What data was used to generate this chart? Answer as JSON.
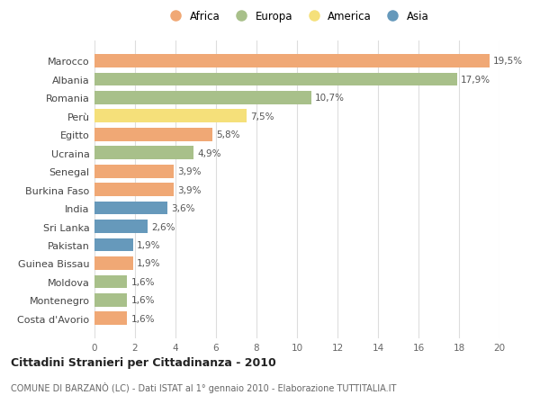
{
  "countries": [
    "Marocco",
    "Albania",
    "Romania",
    "Perù",
    "Egitto",
    "Ucraina",
    "Senegal",
    "Burkina Faso",
    "India",
    "Sri Lanka",
    "Pakistan",
    "Guinea Bissau",
    "Moldova",
    "Montenegro",
    "Costa d'Avorio"
  ],
  "values": [
    19.5,
    17.9,
    10.7,
    7.5,
    5.8,
    4.9,
    3.9,
    3.9,
    3.6,
    2.6,
    1.9,
    1.9,
    1.6,
    1.6,
    1.6
  ],
  "labels": [
    "19,5%",
    "17,9%",
    "10,7%",
    "7,5%",
    "5,8%",
    "4,9%",
    "3,9%",
    "3,9%",
    "3,6%",
    "2,6%",
    "1,9%",
    "1,9%",
    "1,6%",
    "1,6%",
    "1,6%"
  ],
  "continents": [
    "Africa",
    "Europa",
    "Europa",
    "America",
    "Africa",
    "Europa",
    "Africa",
    "Africa",
    "Asia",
    "Asia",
    "Asia",
    "Africa",
    "Europa",
    "Europa",
    "Africa"
  ],
  "colors": {
    "Africa": "#F0A875",
    "Europa": "#A8C08A",
    "America": "#F5E07A",
    "Asia": "#6699BB"
  },
  "legend_order": [
    "Africa",
    "Europa",
    "America",
    "Asia"
  ],
  "xlim": [
    0,
    20
  ],
  "xticks": [
    0,
    2,
    4,
    6,
    8,
    10,
    12,
    14,
    16,
    18,
    20
  ],
  "title": "Cittadini Stranieri per Cittadinanza - 2010",
  "subtitle": "COMUNE DI BARZANÒ (LC) - Dati ISTAT al 1° gennaio 2010 - Elaborazione TUTTITALIA.IT",
  "bg_color": "#ffffff",
  "bar_height": 0.72
}
